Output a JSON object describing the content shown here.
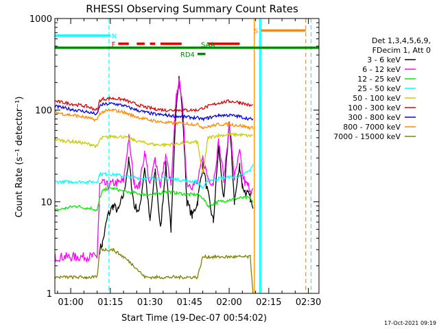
{
  "chart_data": {
    "type": "line",
    "title": "RHESSI Observing Summary Count Rates",
    "xlabel": "Start Time (19-Dec-07 00:54:02)",
    "ylabel": "Count Rate (s⁻¹ detector⁻¹)",
    "timestamp": "17-Oct-2021 09:19",
    "y_scale": "log",
    "ylim": [
      1,
      1000
    ],
    "xlim_minutes": [
      54,
      154
    ],
    "x_ticks": [
      {
        "label": "01:00",
        "minute": 60
      },
      {
        "label": "01:15",
        "minute": 75
      },
      {
        "label": "01:30",
        "minute": 90
      },
      {
        "label": "01:45",
        "minute": 105
      },
      {
        "label": "02:00",
        "minute": 120
      },
      {
        "label": "02:15",
        "minute": 135
      },
      {
        "label": "02:30",
        "minute": 150
      }
    ],
    "y_ticks": [
      {
        "label": "1",
        "value": 1
      },
      {
        "label": "10",
        "value": 10
      },
      {
        "label": "100",
        "value": 100
      },
      {
        "label": "1000",
        "value": 1000
      }
    ],
    "legend": {
      "placement": "right",
      "header": [
        "Det 1,3,4,5,6,9,",
        "FDecim 1, Att 0"
      ],
      "entries": [
        {
          "label": "3 - 6 keV",
          "color": "#000000"
        },
        {
          "label": "6 - 12 keV",
          "color": "#ff00ff"
        },
        {
          "label": "12 - 25 keV",
          "color": "#00ee00"
        },
        {
          "label": "25 - 50 keV",
          "color": "#00ffff"
        },
        {
          "label": "50 - 100 keV",
          "color": "#cccc00"
        },
        {
          "label": "100 - 300 keV",
          "color": "#dd0000"
        },
        {
          "label": "300 - 800 keV",
          "color": "#0000ee"
        },
        {
          "label": "800 - 7000 keV",
          "color": "#ff8800"
        },
        {
          "label": "7000 - 15000 keV",
          "color": "#808000"
        }
      ]
    },
    "series": [
      {
        "color": "#000000",
        "x": [
          54,
          58,
          62,
          66,
          68,
          70,
          71,
          72,
          74,
          76,
          78,
          80,
          82,
          84,
          86,
          88,
          90,
          92,
          94,
          96,
          98,
          100,
          101,
          102,
          103,
          104,
          106,
          108,
          110,
          112,
          114,
          116,
          118,
          120,
          121,
          122,
          124,
          125,
          126,
          127,
          128,
          129
        ],
        "y": [
          null,
          null,
          null,
          null,
          null,
          null,
          3,
          3.5,
          7,
          9,
          8,
          12,
          28,
          9,
          8,
          24,
          6,
          22,
          5,
          25,
          5,
          120,
          230,
          120,
          40,
          10,
          7,
          10,
          25,
          12,
          6,
          40,
          10,
          75,
          30,
          10,
          25,
          15,
          13,
          12,
          11,
          8
        ]
      },
      {
        "color": "#ff00ff",
        "x": [
          54,
          58,
          62,
          66,
          68,
          70,
          71,
          72,
          74,
          76,
          78,
          80,
          82,
          84,
          86,
          88,
          90,
          92,
          94,
          96,
          98,
          100,
          101,
          102,
          103,
          104,
          106,
          108,
          110,
          112,
          114,
          116,
          118,
          120,
          121,
          122,
          124,
          125,
          126,
          127,
          128,
          129
        ],
        "y": [
          2.5,
          2.5,
          2.5,
          2.5,
          2.5,
          2.5,
          15,
          16,
          15,
          16,
          16,
          17,
          50,
          16,
          15,
          35,
          15,
          30,
          15,
          32,
          15,
          140,
          200,
          150,
          50,
          16,
          15,
          16,
          30,
          18,
          16,
          45,
          18,
          70,
          40,
          18,
          35,
          20,
          16,
          15,
          14,
          13
        ]
      },
      {
        "color": "#00ee00",
        "x": [
          54,
          58,
          62,
          66,
          68,
          70,
          71,
          72,
          74,
          76,
          80,
          84,
          88,
          92,
          96,
          100,
          104,
          108,
          110,
          112,
          116,
          120,
          124,
          128,
          129
        ],
        "y": [
          8,
          8.5,
          9,
          8.5,
          8.5,
          8,
          11,
          13,
          14,
          14,
          13,
          12.5,
          12,
          12,
          13,
          12.5,
          12,
          12,
          11,
          9,
          10,
          10.5,
          11,
          11,
          10
        ]
      },
      {
        "color": "#00ffff",
        "x": [
          54,
          58,
          62,
          66,
          68,
          70,
          71,
          72,
          76,
          80,
          84,
          88,
          92,
          96,
          100,
          104,
          108,
          110,
          112,
          116,
          120,
          124,
          128,
          129
        ],
        "y": [
          16.5,
          16.5,
          16.5,
          16.5,
          16.5,
          16.5,
          20,
          20,
          20,
          19,
          18.5,
          18,
          18,
          18,
          17.5,
          17,
          16.5,
          14,
          17,
          18,
          18.5,
          19,
          22,
          26
        ]
      },
      {
        "color": "#cccc00",
        "x": [
          54,
          58,
          62,
          66,
          68,
          70,
          71,
          72,
          76,
          80,
          84,
          88,
          92,
          96,
          100,
          104,
          108,
          110,
          112,
          116,
          120,
          124,
          128,
          129
        ],
        "y": [
          48,
          46,
          45,
          43,
          42,
          40,
          47,
          50,
          52,
          51,
          47,
          44,
          42,
          42,
          43,
          44,
          45,
          20,
          50,
          53,
          54,
          54,
          52,
          54
        ]
      },
      {
        "color": "#dd0000",
        "x": [
          54,
          58,
          62,
          66,
          68,
          70,
          71,
          72,
          76,
          80,
          84,
          88,
          92,
          96,
          100,
          104,
          108,
          110,
          112,
          116,
          120,
          124,
          128,
          129
        ],
        "y": [
          125,
          120,
          115,
          110,
          105,
          100,
          128,
          132,
          135,
          130,
          118,
          108,
          103,
          100,
          100,
          100,
          100,
          105,
          110,
          120,
          125,
          122,
          112,
          112
        ]
      },
      {
        "color": "#0000ee",
        "x": [
          54,
          58,
          62,
          66,
          68,
          70,
          71,
          72,
          76,
          80,
          84,
          88,
          92,
          96,
          100,
          104,
          108,
          110,
          112,
          116,
          120,
          124,
          128,
          129
        ],
        "y": [
          110,
          105,
          100,
          96,
          93,
          90,
          110,
          115,
          118,
          112,
          102,
          95,
          90,
          88,
          86,
          84,
          82,
          80,
          82,
          88,
          88,
          85,
          80,
          80
        ]
      },
      {
        "color": "#ff8800",
        "x": [
          54,
          58,
          62,
          66,
          68,
          70,
          71,
          72,
          76,
          80,
          84,
          88,
          92,
          96,
          100,
          104,
          108,
          110,
          112,
          116,
          120,
          124,
          128,
          129
        ],
        "y": [
          95,
          90,
          87,
          83,
          80,
          78,
          92,
          96,
          100,
          95,
          86,
          80,
          76,
          73,
          72,
          71,
          70,
          65,
          66,
          70,
          70,
          68,
          64,
          64
        ]
      },
      {
        "color": "#808000",
        "x": [
          54,
          58,
          62,
          66,
          68,
          70,
          71,
          72,
          76,
          80,
          84,
          88,
          92,
          96,
          100,
          104,
          108,
          110,
          112,
          116,
          120,
          124,
          128,
          129
        ],
        "y": [
          1.5,
          1.5,
          1.5,
          1.5,
          1.5,
          1.5,
          3,
          3,
          3,
          2.5,
          2,
          1.5,
          1.5,
          1.5,
          1.5,
          1.5,
          1.5,
          2.5,
          2.5,
          2.5,
          2.5,
          2.5,
          2.5,
          1
        ]
      }
    ],
    "annotations": {
      "flags": [
        {
          "label": "N",
          "color": "#00ffff",
          "y_value": 650,
          "segments": [
            [
              54,
              75
            ]
          ]
        },
        {
          "label": "F",
          "color": "#dd0000",
          "y_value": 530,
          "segments": [
            [
              78,
              82
            ],
            [
              85,
              88
            ],
            [
              90,
              92
            ],
            [
              94,
              102
            ],
            [
              112,
              124
            ]
          ]
        },
        {
          "label": "SAA",
          "color": "#008800",
          "y_value": 480,
          "segments": [
            [
              54,
              154
            ]
          ]
        },
        {
          "label": "RD4",
          "color": "#008800",
          "y_value": 410,
          "segments": [
            [
              108,
              111
            ]
          ]
        },
        {
          "label": "S",
          "color": "#ff8800",
          "y_value": 740,
          "segments": [
            [
              132,
              149
            ]
          ]
        }
      ],
      "vlines": [
        {
          "minute": 74.5,
          "color": "#00ffff",
          "style": "dashed"
        },
        {
          "minute": 129.5,
          "color": "#ff8800",
          "style": "solid"
        },
        {
          "minute": 131.5,
          "color": "#00ffff",
          "style": "solid"
        },
        {
          "minute": 132,
          "color": "#00ffff",
          "style": "solid"
        },
        {
          "minute": 149,
          "color": "#ff8800",
          "style": "dashed"
        },
        {
          "minute": 151,
          "color": "#00ffff",
          "style": "dashed"
        }
      ]
    }
  }
}
